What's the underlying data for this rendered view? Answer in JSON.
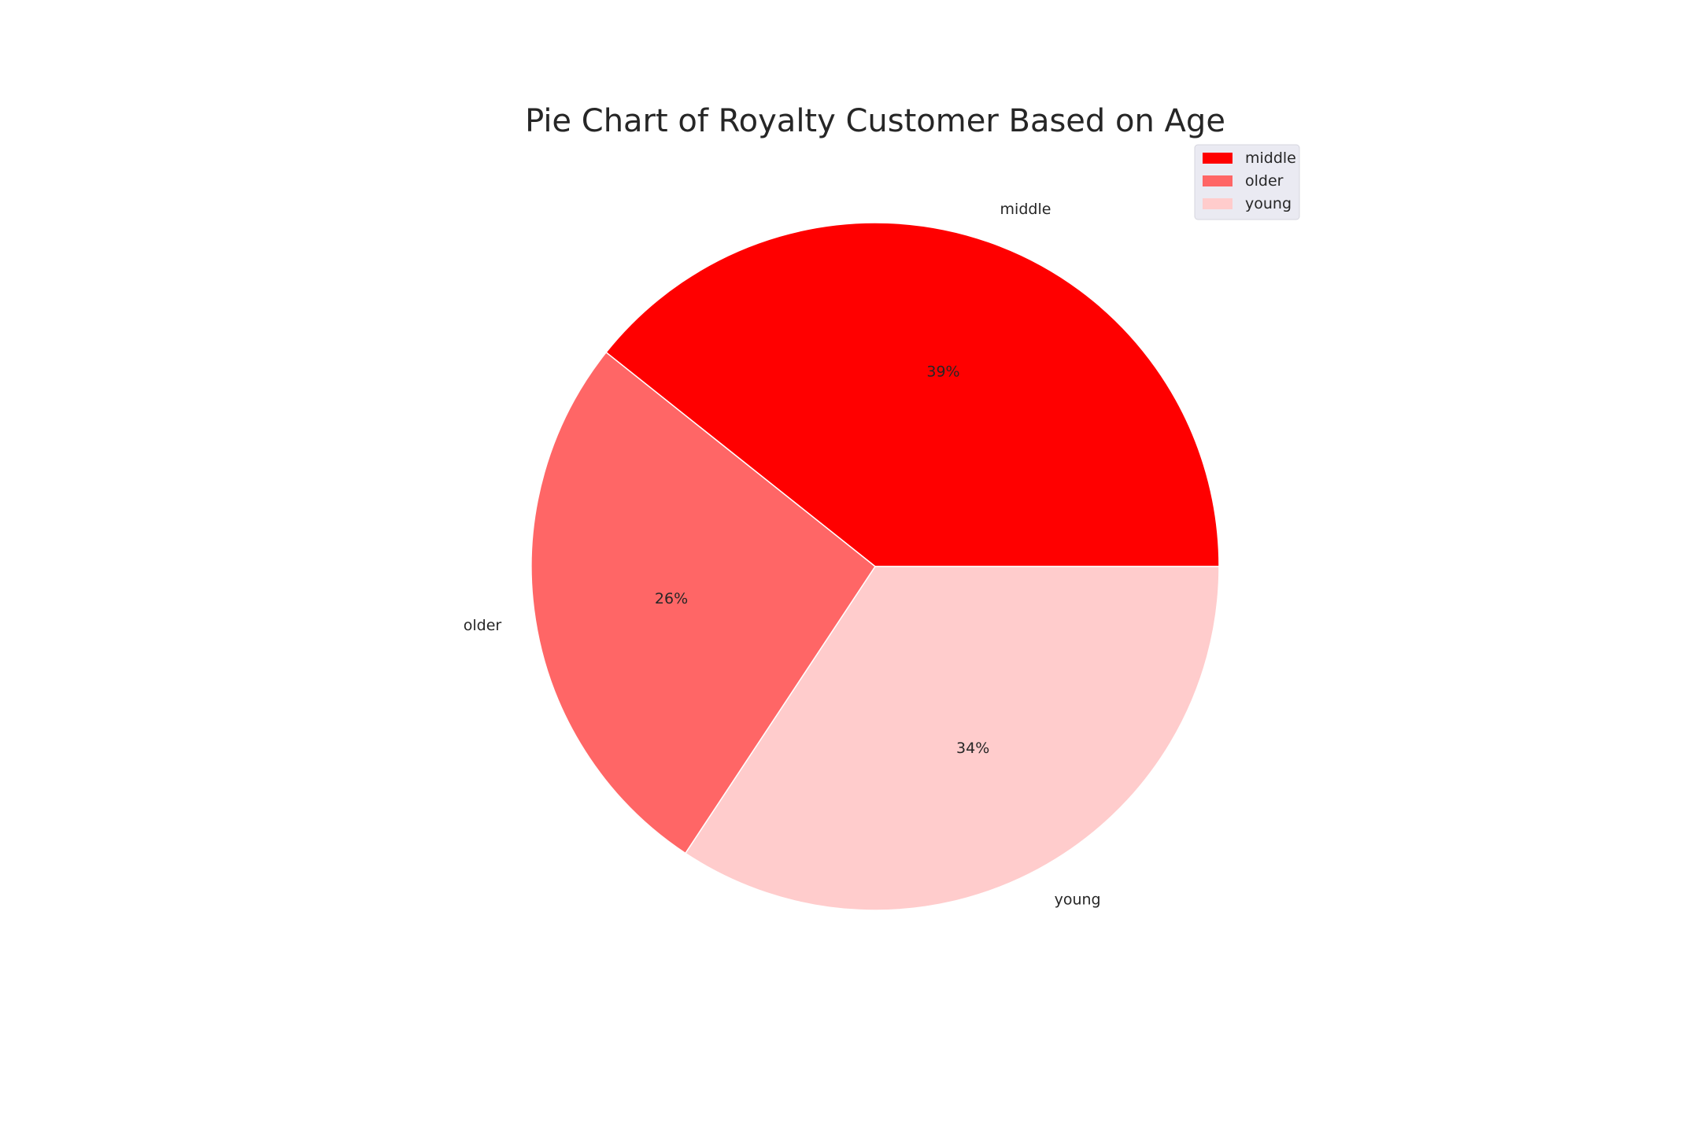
{
  "chart_data": {
    "type": "pie",
    "title": "Pie Chart of Royalty Customer Based on Age",
    "start_angle_deg": 0,
    "direction": "counterclockwise",
    "slices": [
      {
        "label": "middle",
        "value": 39.3,
        "pct_label": "39%",
        "color": "#ff0000"
      },
      {
        "label": "older",
        "value": 26.4,
        "pct_label": "26%",
        "color": "#ff6666"
      },
      {
        "label": "young",
        "value": 34.3,
        "pct_label": "34%",
        "color": "#ffcccc"
      }
    ],
    "legend": {
      "position": "top-right",
      "entries": [
        "middle",
        "older",
        "young"
      ],
      "background": "#eaeaf2"
    }
  }
}
